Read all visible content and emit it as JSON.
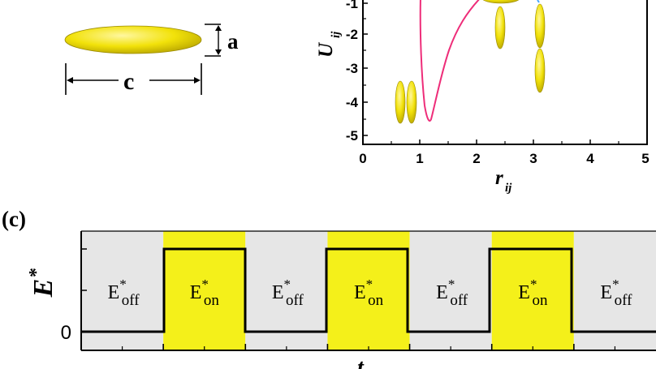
{
  "ellipsoid_schematic": {
    "a_label": "a",
    "c_label": "c",
    "fill_color": "#f2e20a"
  },
  "potential_plot": {
    "ylabel_main": "U",
    "ylabel_sub": "ij",
    "xlabel_main": "r",
    "xlabel_sub": "ij",
    "xticks": [
      "0",
      "1",
      "2",
      "3",
      "4",
      "5"
    ],
    "yticks": [
      "-1",
      "-2",
      "-3",
      "-4",
      "-5"
    ],
    "curve_color": "#ee2d79"
  },
  "panel_c": {
    "label": "(c)",
    "ylabel_main": "E",
    "ylabel_sup": "*",
    "xlabel": "t",
    "zero_label": "0",
    "off_text": "E",
    "off_sup": "*",
    "off_sub": "off",
    "on_text": "E",
    "on_sup": "*",
    "on_sub": "on",
    "phases": [
      "off",
      "on",
      "off",
      "on",
      "off",
      "on",
      "off"
    ],
    "off_color": "#e6e6e6",
    "on_color": "#f4f01a"
  }
}
